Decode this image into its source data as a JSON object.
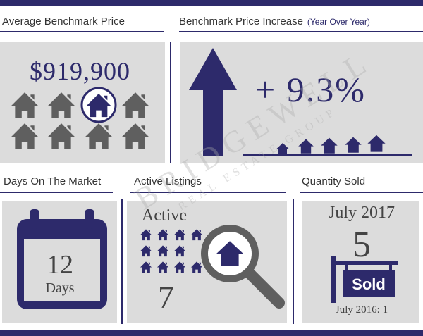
{
  "sections": {
    "avg_price": {
      "title": "Average Benchmark Price",
      "value": "$919,900"
    },
    "increase": {
      "title": "Benchmark Price Increase",
      "subtitle": "(Year Over Year)",
      "value": "+ 9.3%"
    },
    "days": {
      "title": "Days On The Market",
      "value": "12",
      "unit": "Days"
    },
    "active": {
      "title": "Active Listings",
      "label": "Active",
      "value": "7"
    },
    "sold": {
      "title": "Quantity Sold",
      "month": "July 2017",
      "value": "5",
      "sign": "Sold",
      "previous": "July 2016: 1"
    }
  },
  "watermark": {
    "brand": "BRIDGEWELL",
    "sub": "REAL ESTATE GROUP"
  },
  "colors": {
    "navy": "#2d2a6b",
    "gray": "#5f5f5f",
    "panel": "#dcdcdc",
    "text": "#444444"
  }
}
